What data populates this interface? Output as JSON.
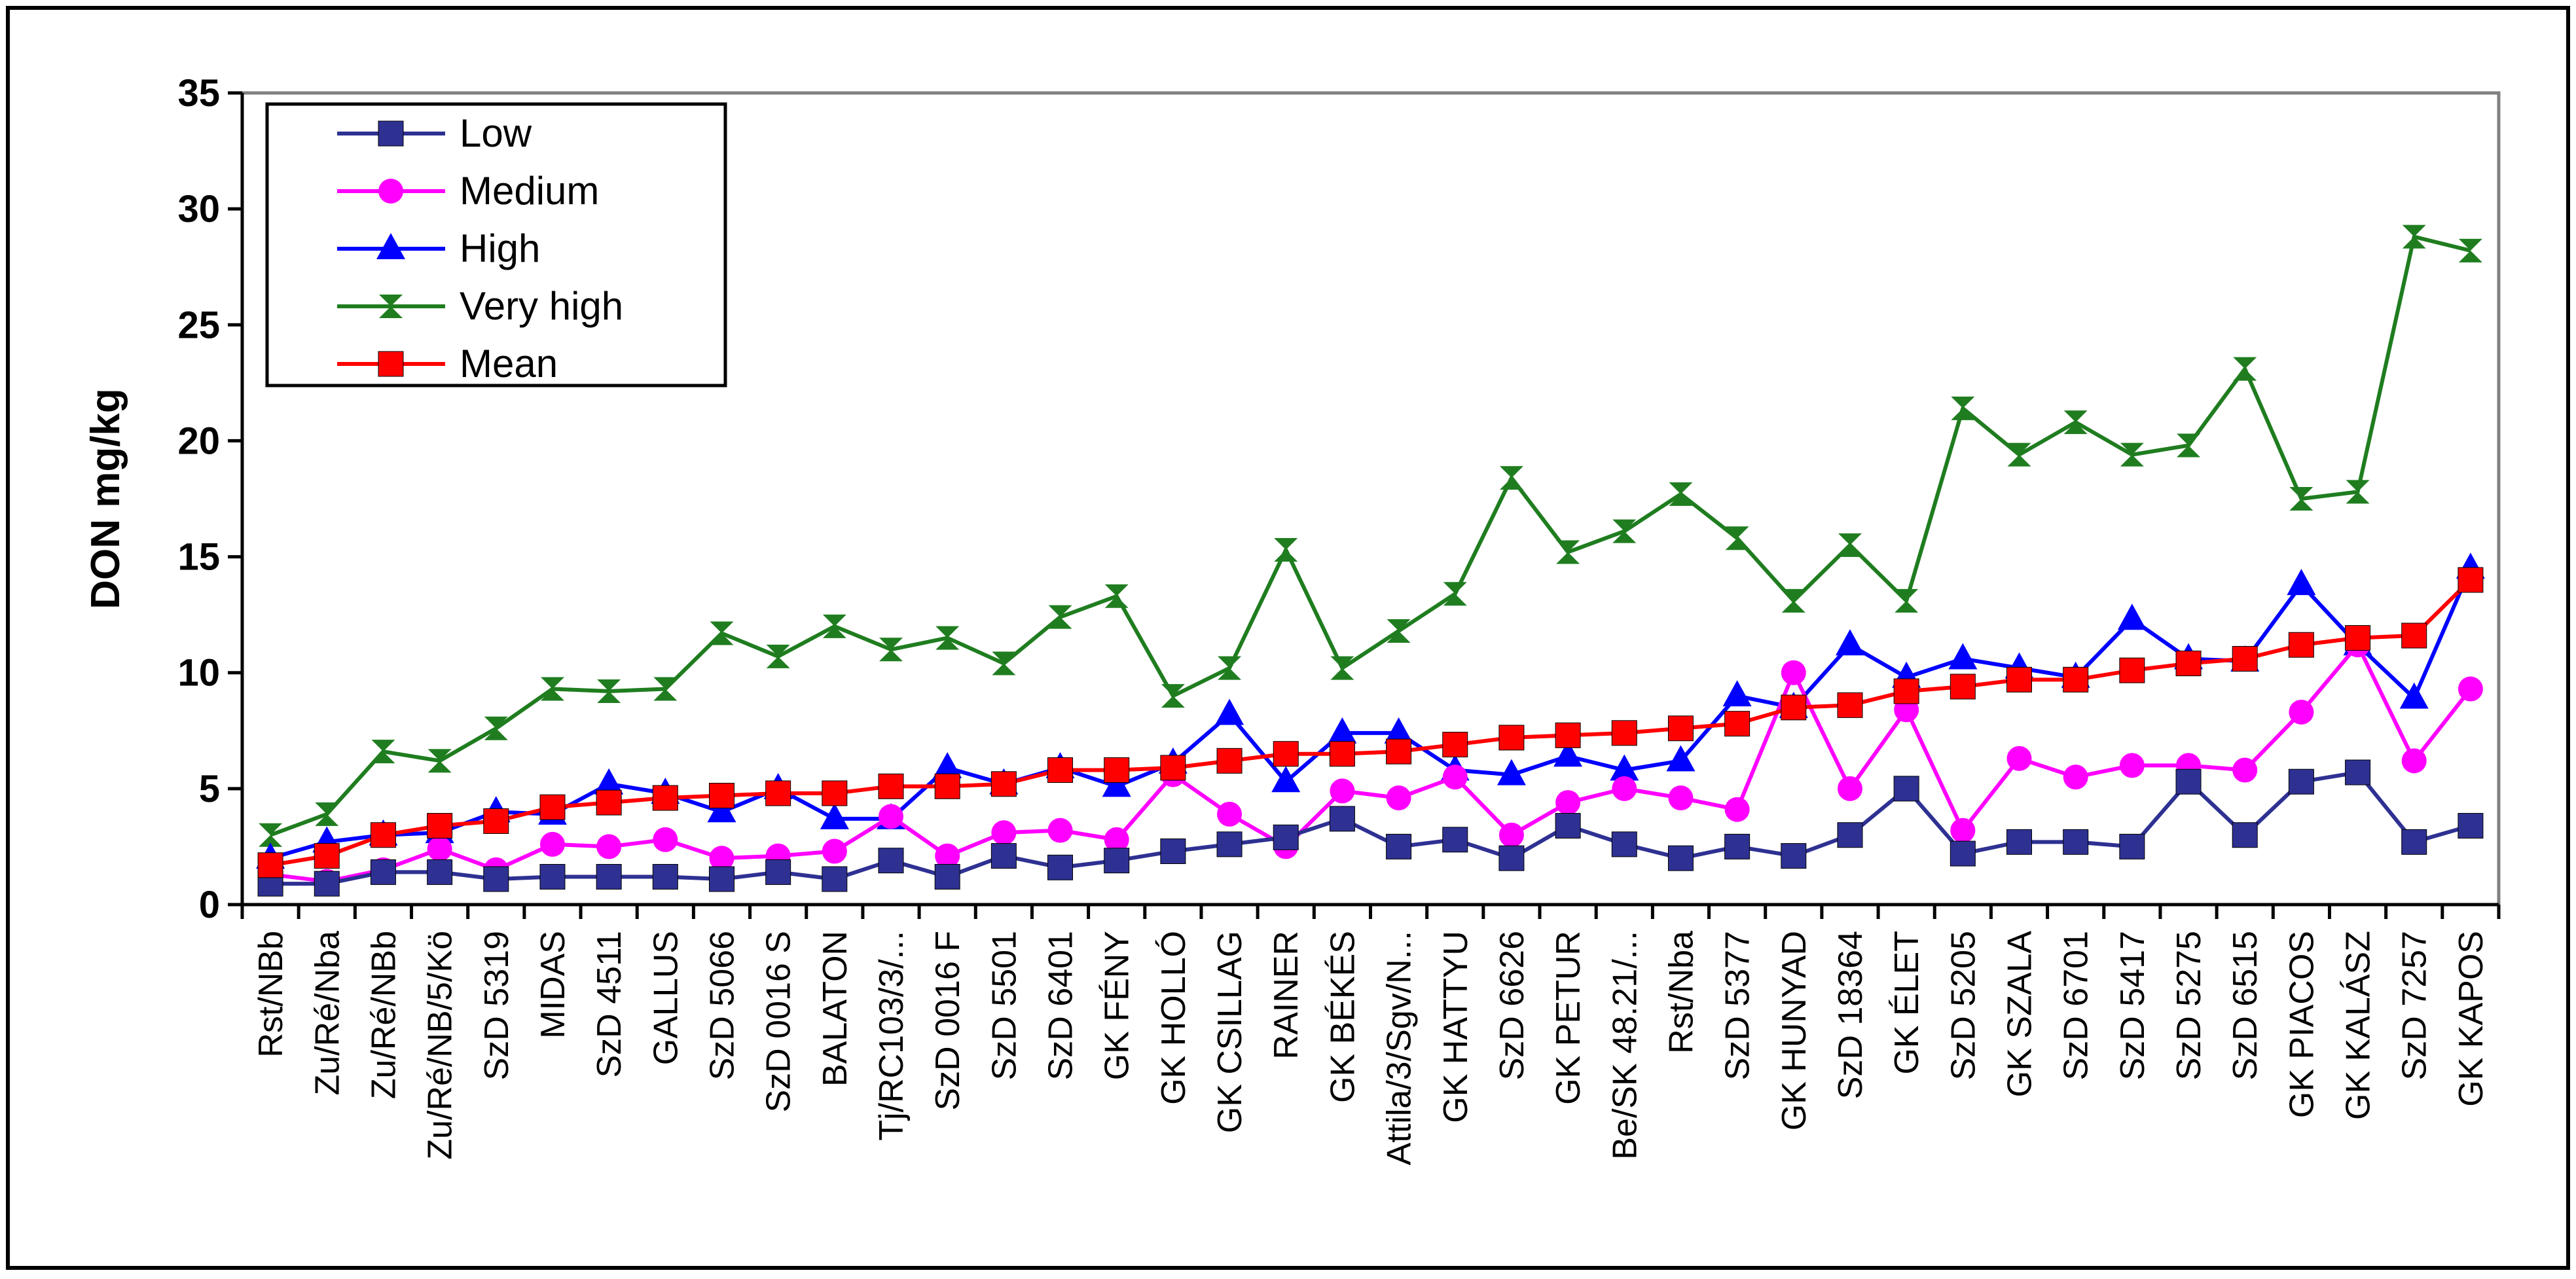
{
  "chart_data": {
    "type": "line",
    "title": "",
    "xlabel": "",
    "ylabel": "DON mg/kg",
    "ylim": [
      0,
      35
    ],
    "yticks": [
      "0",
      "5",
      "10",
      "15",
      "20",
      "25",
      "30",
      "35"
    ],
    "grid": false,
    "legend_position": "top-left",
    "categories": [
      "Rst/NBb",
      "Zu/Ré/Nba",
      "Zu/Ré/NBb",
      "Zu/Ré/NB/5/Kö",
      "SzD 5319",
      "MIDAS",
      "SzD 4511",
      "GALLUS",
      "SzD 5066",
      "SzD 0016 S",
      "BALATON",
      "Tj/RC103/3/...",
      "SzD 0016 F",
      "SzD 5501",
      "SzD 6401",
      "GK FÉNY",
      "GK HOLLÓ",
      "GK CSILLAG",
      "RAINER",
      "GK BÉKÉS",
      "Attila/3/Sgv/N...",
      "GK HATTYU",
      "SzD 6626",
      "GK PETUR",
      "Be/SK 48.21/...",
      "Rst/Nba",
      "SzD 5377",
      "GK HUNYAD",
      "SzD 18364",
      "GK ÉLET",
      "SzD 5205",
      "GK SZALA",
      "SzD 6701",
      "SzD 5417",
      "SzD 5275",
      "SzD 6515",
      "GK PIACOS",
      "GK KALÁSZ",
      "SzD 7257",
      "GK KAPOS"
    ],
    "series": [
      {
        "name": "Low",
        "color": "#2e3192",
        "marker": "square",
        "values": [
          0.9,
          0.9,
          1.4,
          1.4,
          1.1,
          1.2,
          1.2,
          1.2,
          1.1,
          1.4,
          1.1,
          1.9,
          1.2,
          2.1,
          1.6,
          1.9,
          2.3,
          2.6,
          2.9,
          3.7,
          2.5,
          2.8,
          2.0,
          3.4,
          2.6,
          2.0,
          2.5,
          2.1,
          3.0,
          5.0,
          2.2,
          2.7,
          2.7,
          2.5,
          5.3,
          3.0,
          5.3,
          5.7,
          2.7,
          3.4
        ]
      },
      {
        "name": "Medium",
        "color": "#ff00ff",
        "marker": "circle",
        "values": [
          1.3,
          1.0,
          1.5,
          2.4,
          1.5,
          2.6,
          2.5,
          2.8,
          2.0,
          2.1,
          2.3,
          3.8,
          2.1,
          3.1,
          3.2,
          2.8,
          5.6,
          3.9,
          2.5,
          4.9,
          4.6,
          5.5,
          3.0,
          4.4,
          5.0,
          4.6,
          4.1,
          10.0,
          5.0,
          8.4,
          3.2,
          6.3,
          5.5,
          6.0,
          6.0,
          5.8,
          8.3,
          11.2,
          6.2,
          9.3
        ]
      },
      {
        "name": "High",
        "color": "#0000ff",
        "marker": "triangle",
        "values": [
          2.0,
          2.7,
          3.0,
          3.1,
          4.0,
          3.9,
          5.2,
          4.8,
          4.0,
          5.0,
          3.7,
          3.7,
          5.9,
          5.2,
          5.9,
          5.1,
          6.1,
          8.2,
          5.3,
          7.4,
          7.4,
          5.8,
          5.6,
          6.4,
          5.8,
          6.2,
          9.0,
          8.5,
          11.2,
          9.8,
          10.6,
          10.2,
          9.8,
          12.3,
          10.6,
          10.5,
          13.8,
          11.2,
          8.9,
          14.5
        ]
      },
      {
        "name": "Very high",
        "color": "#1f7d1f",
        "marker": "bowtie",
        "values": [
          3.0,
          3.9,
          6.6,
          6.2,
          7.6,
          9.3,
          9.2,
          9.3,
          11.7,
          10.7,
          12.0,
          11.0,
          11.5,
          10.4,
          12.4,
          13.3,
          9.0,
          10.2,
          15.3,
          10.2,
          11.8,
          13.4,
          18.4,
          15.2,
          16.1,
          17.7,
          15.8,
          13.1,
          15.5,
          13.1,
          21.4,
          19.4,
          20.8,
          19.4,
          19.8,
          23.1,
          17.5,
          17.8,
          28.8,
          28.2
        ]
      },
      {
        "name": "Mean",
        "color": "#ff0000",
        "marker": "square",
        "values": [
          1.7,
          2.1,
          3.0,
          3.4,
          3.6,
          4.2,
          4.4,
          4.6,
          4.7,
          4.8,
          4.8,
          5.1,
          5.1,
          5.2,
          5.8,
          5.8,
          5.9,
          6.2,
          6.5,
          6.5,
          6.6,
          6.9,
          7.2,
          7.3,
          7.4,
          7.6,
          7.8,
          8.5,
          8.6,
          9.2,
          9.4,
          9.7,
          9.7,
          10.1,
          10.4,
          10.6,
          11.2,
          11.5,
          11.6,
          14.0
        ]
      }
    ]
  }
}
